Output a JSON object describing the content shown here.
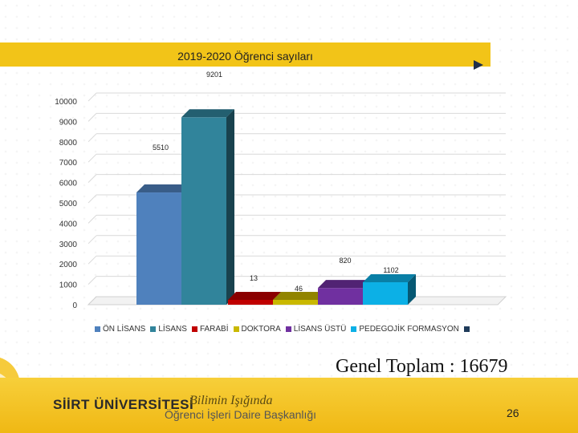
{
  "chart_data": {
    "type": "bar",
    "title": "2019-2020 Öğrenci sayıları",
    "categories": [
      "ÖN LİSANS",
      "LİSANS",
      "FARABİ",
      "DOKTORA",
      "LİSANS ÜSTÜ",
      "PEDEGOJİK FORMASYON"
    ],
    "values": [
      5510,
      9201,
      13,
      46,
      820,
      1102
    ],
    "data_labels": [
      "5510",
      "9201",
      "13",
      "46",
      "820",
      "1102"
    ],
    "colors": [
      "#4f81bd",
      "#31849b",
      "#c00000",
      "#c9b800",
      "#7030a0",
      "#0cb0e6"
    ],
    "yticks": [
      "0",
      "1000",
      "2000",
      "3000",
      "4000",
      "5000",
      "6000",
      "7000",
      "8000",
      "9000",
      "10000"
    ],
    "ylim": [
      0,
      10000
    ],
    "grid": true,
    "legend_position": "bottom",
    "xlabel": "",
    "ylabel": ""
  },
  "summary": {
    "total_text": "Genel Toplam : 16679"
  },
  "footer": {
    "university": "SİİRT ÜNİVERSİTESİ",
    "motto": "Bilimin Işığında",
    "department": "Öğrenci İşleri Daire Başkanlığı",
    "page_number": "26"
  },
  "colors": {
    "accent": "#f2c418",
    "legend_end_marker": "#1f3b5a"
  }
}
